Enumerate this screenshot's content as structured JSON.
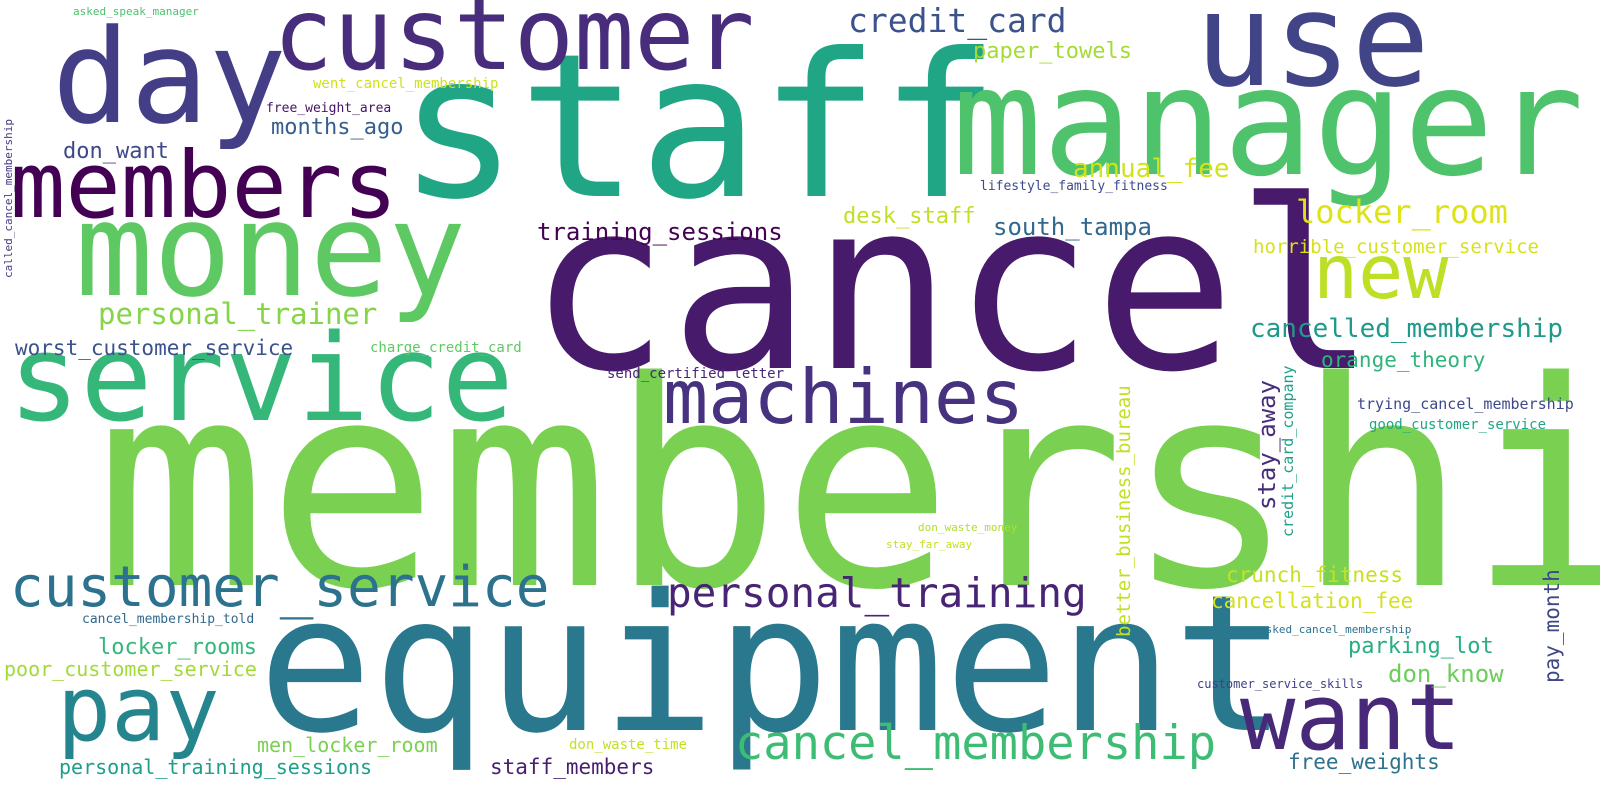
{
  "words": [
    {
      "text": "membership",
      "color": "#7ad151"
    },
    {
      "text": "cancel",
      "color": "#481a6c"
    },
    {
      "text": "staff",
      "color": "#21a685"
    },
    {
      "text": "equipment",
      "color": "#2a788e"
    },
    {
      "text": "manager",
      "color": "#4ec36b"
    },
    {
      "text": "customer",
      "color": "#472d7b"
    },
    {
      "text": "money",
      "color": "#5ec962"
    },
    {
      "text": "day",
      "color": "#433e85"
    },
    {
      "text": "use",
      "color": "#414487"
    },
    {
      "text": "members",
      "color": "#440154"
    },
    {
      "text": "service",
      "color": "#35b779"
    },
    {
      "text": "pay",
      "color": "#25858e"
    },
    {
      "text": "want",
      "color": "#482878"
    },
    {
      "text": "new",
      "color": "#bddf26"
    },
    {
      "text": "machines",
      "color": "#46327e"
    },
    {
      "text": "customer_service",
      "color": "#2c728e"
    },
    {
      "text": "cancel_membership",
      "color": "#3dbc74"
    },
    {
      "text": "personal_training",
      "color": "#482475"
    },
    {
      "text": "credit_card",
      "color": "#3b528b"
    },
    {
      "text": "locker_room",
      "color": "#dde318"
    },
    {
      "text": "personal_trainer",
      "color": "#86d549"
    },
    {
      "text": "cancelled_membership",
      "color": "#1f9a8a"
    },
    {
      "text": "annual_fee",
      "color": "#d2e21b"
    },
    {
      "text": "training_sessions",
      "color": "#440154"
    },
    {
      "text": "south_tampa",
      "color": "#31688e"
    },
    {
      "text": "paper_towels",
      "color": "#a5db36"
    },
    {
      "text": "desk_staff",
      "color": "#c2df23"
    },
    {
      "text": "months_ago",
      "color": "#355f8d"
    },
    {
      "text": "don_want",
      "color": "#3e4989"
    },
    {
      "text": "worst_customer_service",
      "color": "#3b528b"
    },
    {
      "text": "orange_theory",
      "color": "#2fb47c"
    },
    {
      "text": "horrible_customer_service",
      "color": "#d8e219"
    },
    {
      "text": "stay_away",
      "color": "#472c7a"
    },
    {
      "text": "credit_card_company",
      "color": "#1fa088"
    },
    {
      "text": "better_business_bureau",
      "color": "#c2df23"
    },
    {
      "text": "crunch_fitness",
      "color": "#c8e020"
    },
    {
      "text": "cancellation_fee",
      "color": "#d5e21a"
    },
    {
      "text": "parking_lot",
      "color": "#29af7f"
    },
    {
      "text": "don_know",
      "color": "#6ccd5a"
    },
    {
      "text": "pay_month",
      "color": "#3f4788"
    },
    {
      "text": "locker_rooms",
      "color": "#35b779"
    },
    {
      "text": "poor_customer_service",
      "color": "#a2da37"
    },
    {
      "text": "men_locker_room",
      "color": "#7ad151"
    },
    {
      "text": "personal_training_sessions",
      "color": "#1f9e89"
    },
    {
      "text": "staff_members",
      "color": "#481f70"
    },
    {
      "text": "free_weights",
      "color": "#2d718e"
    },
    {
      "text": "trying_cancel_membership",
      "color": "#3e4989"
    },
    {
      "text": "good_customer_service",
      "color": "#21a685"
    },
    {
      "text": "charge_credit_card",
      "color": "#5ec962"
    },
    {
      "text": "send_certified_letter",
      "color": "#482677"
    },
    {
      "text": "lifestyle_family_fitness",
      "color": "#3e4a89"
    },
    {
      "text": "free_weight_area",
      "color": "#471365"
    },
    {
      "text": "went_cancel_membership",
      "color": "#d0e11c"
    },
    {
      "text": "asked_speak_manager",
      "color": "#4ac16d"
    },
    {
      "text": "called_cancel_membership",
      "color": "#443a83"
    },
    {
      "text": "cancel_membership_told",
      "color": "#31688e"
    },
    {
      "text": "asked_cancel_membership",
      "color": "#2c728e"
    },
    {
      "text": "customer_service_skills",
      "color": "#424086"
    },
    {
      "text": "don_waste_money",
      "color": "#b0dd2f"
    },
    {
      "text": "stay_far_away",
      "color": "#c2df23"
    },
    {
      "text": "don_waste_time",
      "color": "#c5e021"
    }
  ]
}
